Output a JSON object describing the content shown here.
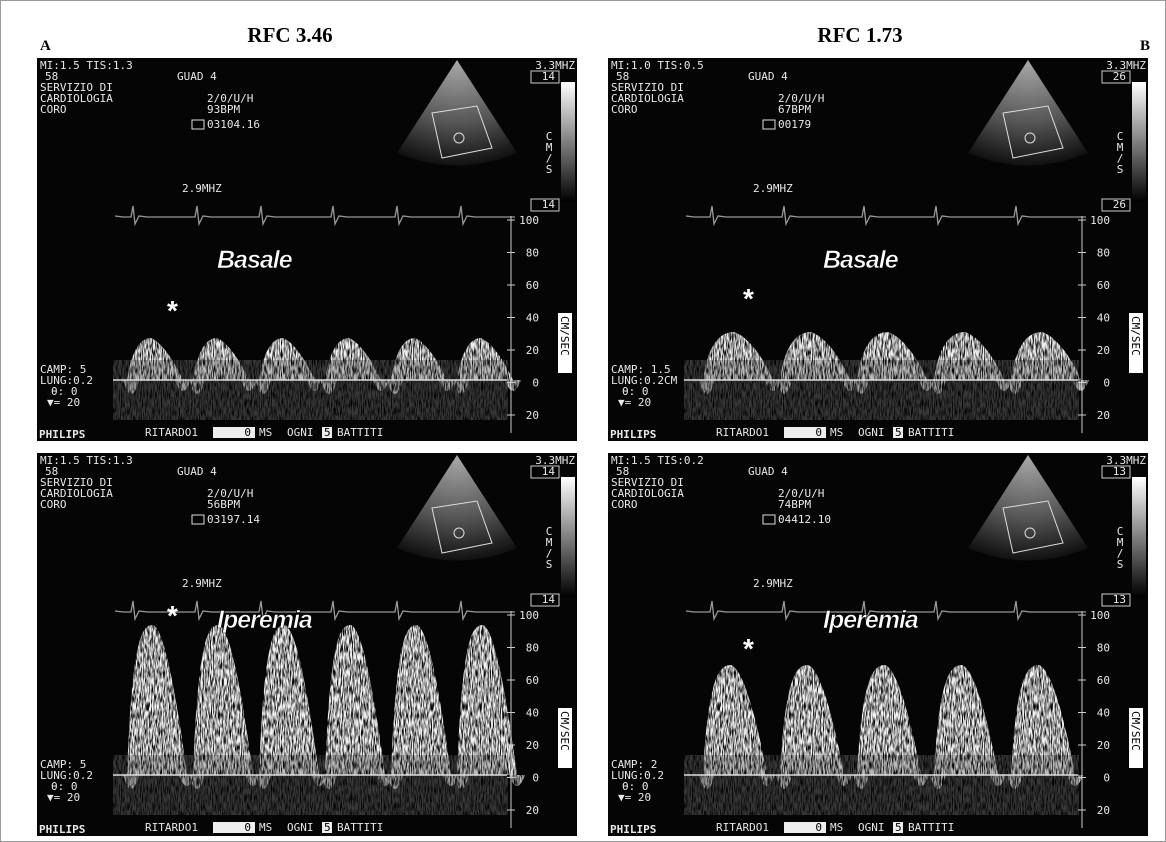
{
  "figure": {
    "label_a": "A",
    "label_b": "B",
    "title_a": "RFC 3.46",
    "title_b": "RFC 1.73"
  },
  "panels": [
    {
      "mi": "MI:1.5 TIS:1.3",
      "depth": "58",
      "dept1": "SERVIZIO DI",
      "dept2": "CARDIOLOGIA",
      "dept3": "CORO",
      "gain": "GUAD 4",
      "mode": "2/0/U/H",
      "bpm": "93BPM",
      "clip": "03104.16",
      "probe": "3.3MHZ",
      "doppler": "2.9MHZ",
      "scale_top": "14",
      "scale_bottom": "14",
      "unit": "CM/S",
      "speed_ticks": [
        "100",
        "80",
        "60",
        "40",
        "20",
        "0",
        "20"
      ],
      "speed_unit": "CM/SEC",
      "condition": "Basale",
      "marker": "*",
      "camp": "CAMP: 5",
      "lung": "LUNG:0.2",
      "angle": "θ: 0",
      "filter": "▼= 20",
      "brand": "PHILIPS",
      "delay": "RITARDO1",
      "delay_value": "0",
      "delay_unit": "MS",
      "every": "OGNI",
      "every_value": "5",
      "beats": "BATTITI"
    },
    {
      "mi": "MI:1.0 TIS:0.5",
      "depth": "58",
      "dept1": "SERVIZIO DI",
      "dept2": "CARDIOLOGIA",
      "dept3": "CORO",
      "gain": "GUAD 4",
      "mode": "2/0/U/H",
      "bpm": "67BPM",
      "clip": "00179",
      "probe": "3.3MHZ",
      "doppler": "2.9MHZ",
      "scale_top": "26",
      "scale_bottom": "26",
      "unit": "CM/S",
      "speed_ticks": [
        "100",
        "80",
        "60",
        "40",
        "20",
        "0",
        "20"
      ],
      "speed_unit": "CM/SEC",
      "condition": "Basale",
      "marker": "*",
      "camp": "CAMP: 1.5",
      "lung": "LUNG:0.2CM",
      "angle": "θ: 0",
      "filter": "▼= 20",
      "brand": "PHILIPS",
      "delay": "RITARDO1",
      "delay_value": "0",
      "delay_unit": "MS",
      "every": "OGNI",
      "every_value": "5",
      "beats": "BATTITI"
    },
    {
      "mi": "MI:1.5 TIS:1.3",
      "depth": "58",
      "dept1": "SERVIZIO DI",
      "dept2": "CARDIOLOGIA",
      "dept3": "CORO",
      "gain": "GUAD 4",
      "mode": "2/0/U/H",
      "bpm": "56BPM",
      "clip": "03197.14",
      "probe": "3.3MHZ",
      "doppler": "2.9MHZ",
      "scale_top": "14",
      "scale_bottom": "14",
      "unit": "CM/S",
      "speed_ticks": [
        "100",
        "80",
        "60",
        "40",
        "20",
        "0",
        "20"
      ],
      "speed_unit": "CM/SEC",
      "condition": "Iperemia",
      "marker": "*",
      "camp": "CAMP: 5",
      "lung": "LUNG:0.2",
      "angle": "θ: 0",
      "filter": "▼= 20",
      "brand": "PHILIPS",
      "delay": "RITARDO1",
      "delay_value": "0",
      "delay_unit": "MS",
      "every": "OGNI",
      "every_value": "5",
      "beats": "BATTITI"
    },
    {
      "mi": "MI:1.5 TIS:0.2",
      "depth": "58",
      "dept1": "SERVIZIO DI",
      "dept2": "CARDIOLOGIA",
      "dept3": "CORO",
      "gain": "GUAD 4",
      "mode": "2/0/U/H",
      "bpm": "74BPM",
      "clip": "04412.10",
      "probe": "3.3MHZ",
      "doppler": "2.9MHZ",
      "scale_top": "13",
      "scale_bottom": "13",
      "unit": "CM/S",
      "speed_ticks": [
        "100",
        "80",
        "60",
        "40",
        "20",
        "0",
        "20"
      ],
      "speed_unit": "CM/SEC",
      "condition": "Iperemia",
      "marker": "*",
      "camp": "CAMP: 2",
      "lung": "LUNG:0.2",
      "angle": "θ: 0",
      "filter": "▼= 20",
      "brand": "PHILIPS",
      "delay": "RITARDO1",
      "delay_value": "0",
      "delay_unit": "MS",
      "every": "OGNI",
      "every_value": "5",
      "beats": "BATTITI"
    }
  ]
}
